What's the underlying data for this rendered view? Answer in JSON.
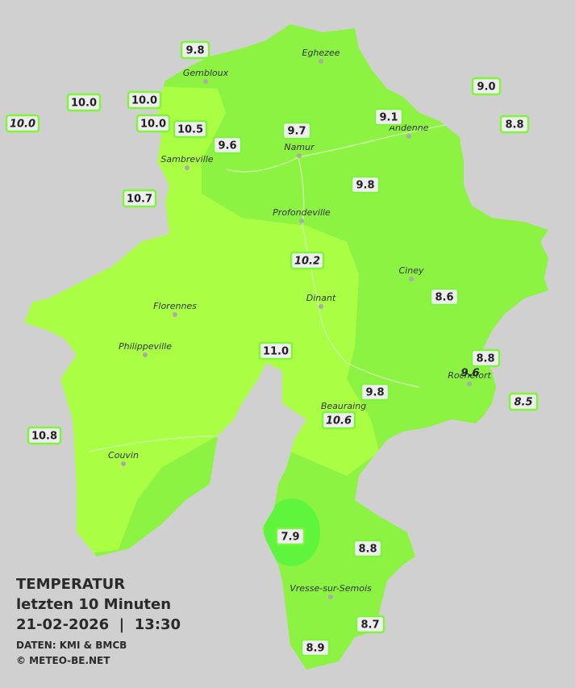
{
  "legend": {
    "title": "TEMPERATUR",
    "subtitle": "letzten 10 Minuten",
    "datetime": "21-02-2026  |  13:30",
    "source": "DATEN: KMI & BMCB",
    "copyright": "© METEO-BE.NET"
  },
  "towns": [
    "Eghezee",
    "Gembloux",
    "Andenne",
    "Namur",
    "Sambreville",
    "Profondeville",
    "Ciney",
    "Dinant",
    "Florennes",
    "Philippeville",
    "Rochefort",
    "Beauraing",
    "Couvin",
    "Vresse-sur-Semois"
  ],
  "stations": [
    {
      "label": "9.8",
      "italic": false
    },
    {
      "label": "10.0",
      "italic": false
    },
    {
      "label": "10.0",
      "italic": false
    },
    {
      "label": "10.0",
      "italic": true
    },
    {
      "label": "10.0",
      "italic": false
    },
    {
      "label": "10.5",
      "italic": false
    },
    {
      "label": "9.6",
      "italic": false
    },
    {
      "label": "9.7",
      "italic": false
    },
    {
      "label": "9.1",
      "italic": false
    },
    {
      "label": "9.0",
      "italic": false
    },
    {
      "label": "8.8",
      "italic": false
    },
    {
      "label": "9.8",
      "italic": false
    },
    {
      "label": "10.7",
      "italic": false
    },
    {
      "label": "10.2",
      "italic": true
    },
    {
      "label": "8.6",
      "italic": false
    },
    {
      "label": "11.0",
      "italic": false
    },
    {
      "label": "8.8",
      "italic": false
    },
    {
      "label": "9.6",
      "italic": true
    },
    {
      "label": "9.8",
      "italic": false
    },
    {
      "label": "8.5",
      "italic": true
    },
    {
      "label": "10.6",
      "italic": true
    },
    {
      "label": "10.8",
      "italic": false
    },
    {
      "label": "7.9",
      "italic": false
    },
    {
      "label": "8.8",
      "italic": false
    },
    {
      "label": "8.7",
      "italic": false
    },
    {
      "label": "8.9",
      "italic": false
    }
  ]
}
